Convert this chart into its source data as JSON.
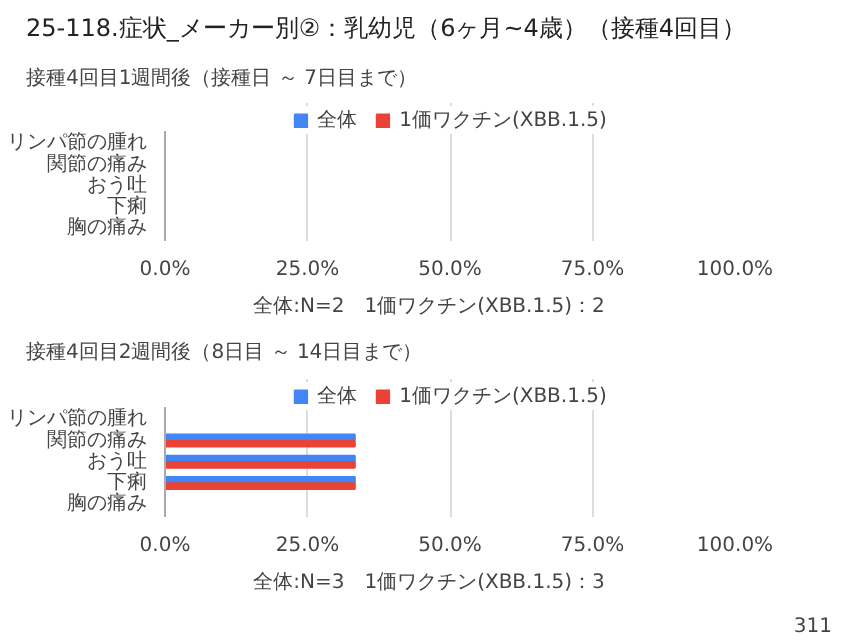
{
  "chart_data": [
    {
      "type": "bar",
      "orientation": "horizontal",
      "title": "25-118.症状_メーカー別②：乳幼児（6ヶ月~4歳）（接種4回目）",
      "subtitle": "接種4回目1週間後（接種日 ～ 7日目まで）",
      "categories": [
        "リンパ節の腫れ",
        "関節の痛み",
        "おう吐",
        "下痢",
        "胸の痛み"
      ],
      "series": [
        {
          "name": "全体",
          "color": "#4285f4",
          "values": [
            0,
            0,
            0,
            0,
            0
          ]
        },
        {
          "name": "1価ワクチン(XBB.1.5)",
          "color": "#ea4335",
          "values": [
            0,
            0,
            0,
            0,
            0
          ]
        }
      ],
      "xlim": [
        0,
        100
      ],
      "xticks": [
        {
          "value": 0,
          "label": "0.0%"
        },
        {
          "value": 25,
          "label": "25.0%"
        },
        {
          "value": 50,
          "label": "50.0%"
        },
        {
          "value": 75,
          "label": "75.0%"
        },
        {
          "value": 100,
          "label": "100.0%"
        }
      ],
      "grid": "x",
      "legend": "top",
      "annotations": [
        "全体:N=2　1価ワクチン(XBB.1.5)：2"
      ]
    },
    {
      "type": "bar",
      "orientation": "horizontal",
      "title": "接種4回目2週間後（8日目 ～ 14日目まで）",
      "categories": [
        "リンパ節の腫れ",
        "関節の痛み",
        "おう吐",
        "下痢",
        "胸の痛み"
      ],
      "series": [
        {
          "name": "全体",
          "color": "#4285f4",
          "values": [
            0,
            33.3,
            33.3,
            33.3,
            0
          ]
        },
        {
          "name": "1価ワクチン(XBB.1.5)",
          "color": "#ea4335",
          "values": [
            0,
            33.3,
            33.3,
            33.3,
            0
          ]
        }
      ],
      "xlim": [
        0,
        100
      ],
      "xticks": [
        {
          "value": 0,
          "label": "0.0%"
        },
        {
          "value": 25,
          "label": "25.0%"
        },
        {
          "value": 50,
          "label": "50.0%"
        },
        {
          "value": 75,
          "label": "75.0%"
        },
        {
          "value": 100,
          "label": "100.0%"
        }
      ],
      "grid": "x",
      "legend": "top",
      "annotations": [
        "全体:N=3　1価ワクチン(XBB.1.5)：3",
        "311"
      ]
    }
  ]
}
